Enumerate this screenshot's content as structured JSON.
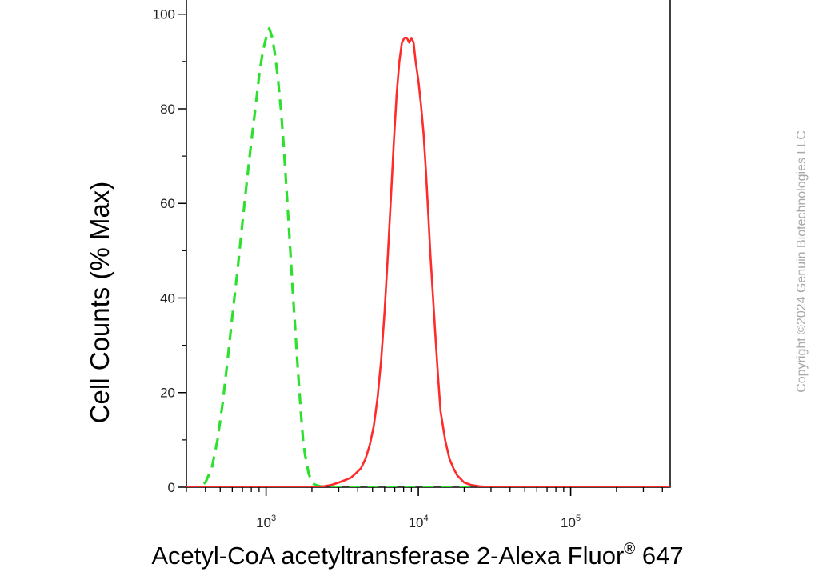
{
  "chart_data": {
    "type": "line",
    "title": "",
    "xlabel": "Acetyl-CoA acetyltransferase 2-Alexa Fluor",
    "xlabel_sup": "®",
    "xlabel_suffix": "647",
    "ylabel": "Cell Counts (% Max)",
    "x_scale": "log",
    "xlim": [
      300,
      450000
    ],
    "ylim": [
      0,
      103
    ],
    "grid": false,
    "legend": "none",
    "y_ticks": [
      {
        "value": 0,
        "label": "0"
      },
      {
        "value": 20,
        "label": "20"
      },
      {
        "value": 40,
        "label": "40"
      },
      {
        "value": 60,
        "label": "60"
      },
      {
        "value": 80,
        "label": "80"
      },
      {
        "value": 100,
        "label": "100"
      }
    ],
    "x_ticks": [
      {
        "value": 1000,
        "base": "10",
        "exp": "3"
      },
      {
        "value": 10000,
        "base": "10",
        "exp": "4"
      },
      {
        "value": 100000,
        "base": "10",
        "exp": "5"
      }
    ],
    "series": [
      {
        "color": "#2ee02e",
        "style": "dashed",
        "x": [
          300,
          330,
          360,
          400,
          440,
          480,
          520,
          560,
          600,
          650,
          700,
          750,
          800,
          850,
          900,
          950,
          1000,
          1050,
          1100,
          1150,
          1200,
          1250,
          1300,
          1350,
          1400,
          1450,
          1500,
          1550,
          1600,
          1650,
          1700,
          1750,
          1800,
          1850,
          1900,
          1950,
          2000,
          2100,
          2200,
          2400,
          2700,
          3000,
          4000,
          6000,
          10000,
          30000,
          100000,
          450000
        ],
        "y": [
          0,
          0,
          0,
          1,
          4,
          10,
          18,
          27,
          36,
          46,
          56,
          65,
          73,
          80,
          87,
          92,
          95,
          97,
          95,
          91,
          86,
          80,
          73,
          65,
          57,
          49,
          41,
          34,
          27,
          21,
          15,
          10,
          7,
          5,
          3,
          2,
          1,
          0.5,
          0.3,
          0,
          0,
          0,
          0,
          0,
          0,
          0,
          0,
          0
        ]
      },
      {
        "color": "#ff2a2a",
        "style": "solid",
        "x": [
          300,
          1000,
          1500,
          2000,
          2400,
          2700,
          3000,
          3300,
          3600,
          3900,
          4200,
          4500,
          4800,
          5100,
          5400,
          5700,
          6000,
          6300,
          6600,
          6900,
          7200,
          7500,
          7800,
          8100,
          8400,
          8700,
          9000,
          9300,
          9600,
          10000,
          10400,
          10800,
          11200,
          11600,
          12000,
          12500,
          13000,
          13500,
          14000,
          15000,
          16000,
          17000,
          18000,
          20000,
          22000,
          25000,
          30000,
          50000,
          100000,
          450000
        ],
        "y": [
          0,
          0,
          0,
          0,
          0.2,
          0.5,
          1,
          1.5,
          2,
          3,
          4,
          6,
          9,
          13,
          19,
          27,
          37,
          49,
          61,
          73,
          83,
          90,
          94,
          95,
          95,
          94,
          95,
          94,
          90,
          86,
          81,
          75,
          67,
          58,
          49,
          40,
          31,
          23,
          16,
          10,
          6,
          4,
          2.5,
          1,
          0.5,
          0.2,
          0,
          0,
          0,
          0
        ]
      }
    ]
  },
  "watermark": "Copyright ©2024 Genuin Biotechnologies LLC"
}
